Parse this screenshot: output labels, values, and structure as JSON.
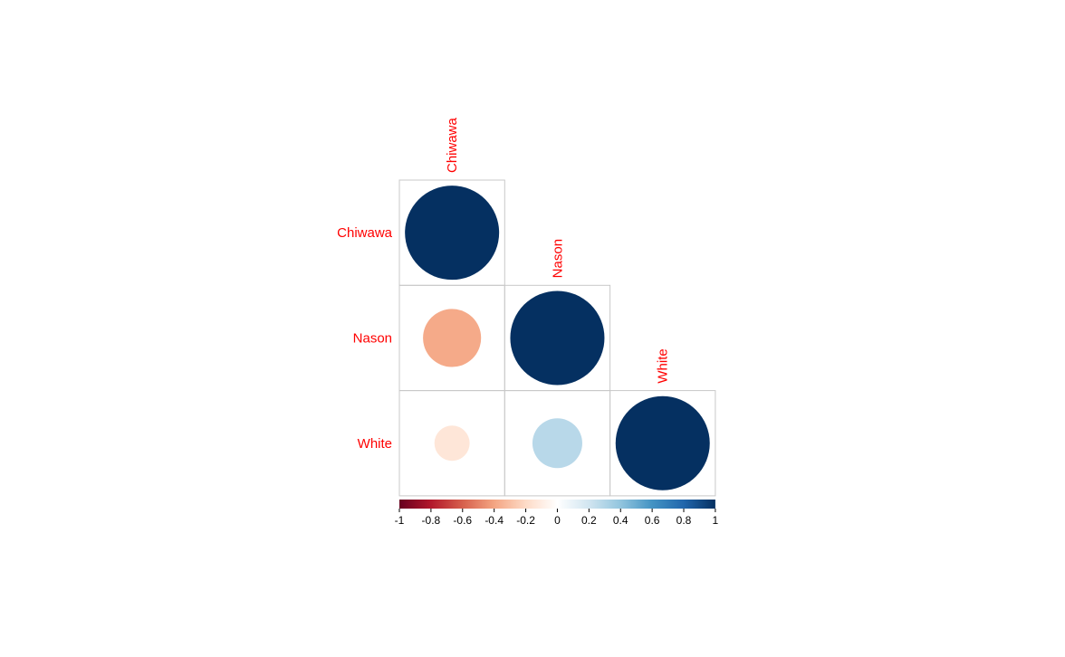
{
  "chart_data": {
    "type": "heatmap",
    "variables": [
      "Chiwawa",
      "Nason",
      "White"
    ],
    "matrix_shape": "lower-triangle",
    "glyph": "circle",
    "label_color": "#FF0000",
    "correlations": [
      [
        1.0,
        null,
        null
      ],
      [
        -0.38,
        1.0,
        null
      ],
      [
        -0.14,
        0.28,
        1.0
      ]
    ],
    "colorbar": {
      "range": [
        -1,
        1
      ],
      "tick_labels": [
        "-1",
        "-0.8",
        "-0.6",
        "-0.4",
        "-0.2",
        "0",
        "0.2",
        "0.4",
        "0.6",
        "0.8",
        "1"
      ],
      "tick_values": [
        -1,
        -0.8,
        -0.6,
        -0.4,
        -0.2,
        0,
        0.2,
        0.4,
        0.6,
        0.8,
        1
      ],
      "colors": [
        "#67001F",
        "#B2182B",
        "#D6604D",
        "#F4A582",
        "#FDDBC7",
        "#FFFFFF",
        "#D1E5F0",
        "#92C5DE",
        "#4393C3",
        "#2166AC",
        "#053061"
      ],
      "position": "bottom"
    },
    "title": "",
    "xlabel": "",
    "ylabel": ""
  }
}
